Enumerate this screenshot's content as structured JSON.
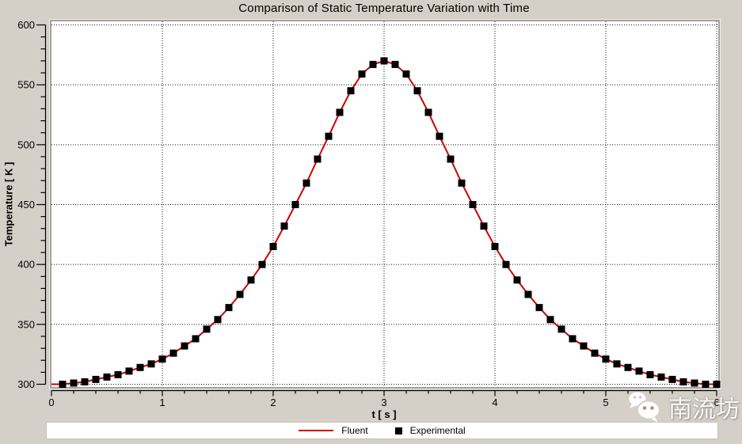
{
  "window": {
    "background": "#d4d0c8"
  },
  "watermark": {
    "text": "南流坊",
    "icon": "wechat-icon"
  },
  "chart_data": {
    "type": "line",
    "title": "Comparison of Static Temperature Variation with Time",
    "xlabel": "t [ s ]",
    "ylabel": "Temperature [ K ]",
    "xlim": [
      0,
      6
    ],
    "ylim": [
      300,
      600
    ],
    "x_major_tick_step": 1,
    "x_minor_tick_step": 0.2,
    "y_major_tick_step": 50,
    "y_minor_tick_step": 10,
    "x_tick_labels": [
      "0",
      "1",
      "2",
      "3",
      "4",
      "5",
      "6"
    ],
    "y_tick_labels": [
      "300",
      "350",
      "400",
      "450",
      "500",
      "550",
      "600"
    ],
    "grid": "dotted",
    "legend_position": "bottom",
    "plot_background": "#ffffff",
    "series": [
      {
        "name": "Fluent",
        "style": "line",
        "color": "#cc0000",
        "x": [
          0,
          0.1,
          0.2,
          0.3,
          0.4,
          0.5,
          0.6,
          0.7,
          0.8,
          0.9,
          1,
          1.1,
          1.2,
          1.3,
          1.4,
          1.5,
          1.6,
          1.7,
          1.8,
          1.9,
          2,
          2.1,
          2.2,
          2.3,
          2.4,
          2.5,
          2.6,
          2.7,
          2.8,
          2.9,
          3,
          3.1,
          3.2,
          3.3,
          3.4,
          3.5,
          3.6,
          3.7,
          3.8,
          3.9,
          4,
          4.1,
          4.2,
          4.3,
          4.4,
          4.5,
          4.6,
          4.7,
          4.8,
          4.9,
          5,
          5.1,
          5.2,
          5.3,
          5.4,
          5.5,
          5.6,
          5.7,
          5.8,
          5.9,
          6
        ],
        "values": [
          300,
          300,
          301,
          302,
          304,
          306,
          308,
          311,
          314,
          317,
          321,
          326,
          332,
          338,
          346,
          354,
          364,
          375,
          387,
          400,
          415,
          432,
          450,
          468,
          488,
          507,
          527,
          545,
          559,
          567,
          570,
          567,
          559,
          545,
          527,
          507,
          488,
          468,
          450,
          432,
          415,
          400,
          387,
          375,
          364,
          354,
          346,
          338,
          332,
          326,
          321,
          317,
          314,
          311,
          308,
          306,
          304,
          302,
          301,
          300,
          300
        ]
      },
      {
        "name": "Experimental",
        "style": "square-marker",
        "color": "#000000",
        "x": [
          0.1,
          0.2,
          0.3,
          0.4,
          0.5,
          0.6,
          0.7,
          0.8,
          0.9,
          1,
          1.1,
          1.2,
          1.3,
          1.4,
          1.5,
          1.6,
          1.7,
          1.8,
          1.9,
          2,
          2.1,
          2.2,
          2.3,
          2.4,
          2.5,
          2.6,
          2.7,
          2.8,
          2.9,
          3,
          3.1,
          3.2,
          3.3,
          3.4,
          3.5,
          3.6,
          3.7,
          3.8,
          3.9,
          4,
          4.1,
          4.2,
          4.3,
          4.4,
          4.5,
          4.6,
          4.7,
          4.8,
          4.9,
          5,
          5.1,
          5.2,
          5.3,
          5.4,
          5.5,
          5.6,
          5.7,
          5.8,
          5.9,
          6
        ],
        "values": [
          300,
          301,
          302,
          304,
          306,
          308,
          311,
          314,
          317,
          321,
          326,
          332,
          338,
          346,
          354,
          364,
          375,
          387,
          400,
          415,
          432,
          450,
          468,
          488,
          507,
          527,
          545,
          559,
          567,
          570,
          567,
          559,
          545,
          527,
          507,
          488,
          468,
          450,
          432,
          415,
          400,
          387,
          375,
          364,
          354,
          346,
          338,
          332,
          326,
          321,
          317,
          314,
          311,
          308,
          306,
          304,
          302,
          301,
          300,
          300
        ]
      }
    ]
  }
}
